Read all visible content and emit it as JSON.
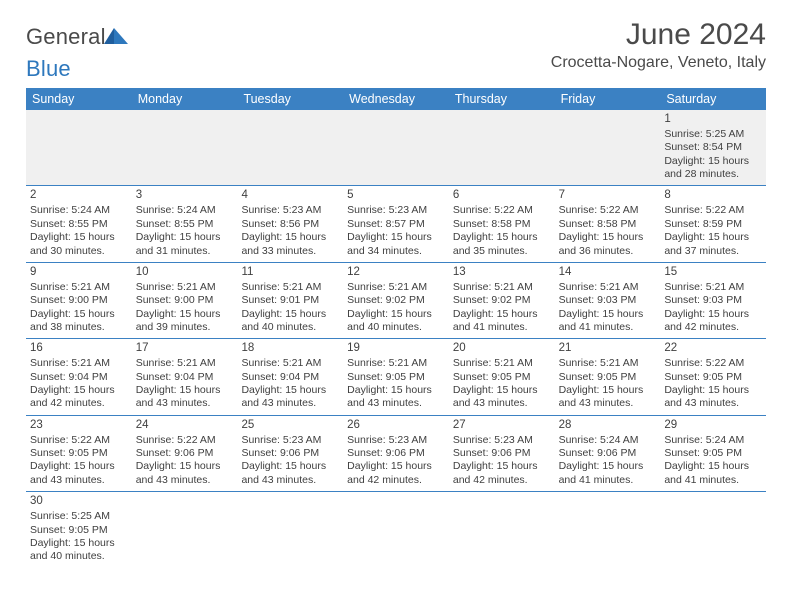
{
  "brand": {
    "name_a": "General",
    "name_b": "Blue"
  },
  "title": {
    "month": "June 2024",
    "location": "Crocetta-Nogare, Veneto, Italy"
  },
  "colors": {
    "header_bg": "#3b81c3",
    "divider": "#3b81c3",
    "text": "#3f3f3f",
    "brand_gray": "#4a4a4a",
    "brand_blue": "#2e78bd"
  },
  "weekdays": [
    "Sunday",
    "Monday",
    "Tuesday",
    "Wednesday",
    "Thursday",
    "Friday",
    "Saturday"
  ],
  "weeks": [
    [
      {
        "empty": true
      },
      {
        "empty": true
      },
      {
        "empty": true
      },
      {
        "empty": true
      },
      {
        "empty": true
      },
      {
        "empty": true
      },
      {
        "day": "1",
        "sunrise": "Sunrise: 5:25 AM",
        "sunset": "Sunset: 8:54 PM",
        "day_a": "Daylight: 15 hours",
        "day_b": "and 28 minutes.",
        "firstfill": true
      }
    ],
    [
      {
        "day": "2",
        "sunrise": "Sunrise: 5:24 AM",
        "sunset": "Sunset: 8:55 PM",
        "day_a": "Daylight: 15 hours",
        "day_b": "and 30 minutes."
      },
      {
        "day": "3",
        "sunrise": "Sunrise: 5:24 AM",
        "sunset": "Sunset: 8:55 PM",
        "day_a": "Daylight: 15 hours",
        "day_b": "and 31 minutes."
      },
      {
        "day": "4",
        "sunrise": "Sunrise: 5:23 AM",
        "sunset": "Sunset: 8:56 PM",
        "day_a": "Daylight: 15 hours",
        "day_b": "and 33 minutes."
      },
      {
        "day": "5",
        "sunrise": "Sunrise: 5:23 AM",
        "sunset": "Sunset: 8:57 PM",
        "day_a": "Daylight: 15 hours",
        "day_b": "and 34 minutes."
      },
      {
        "day": "6",
        "sunrise": "Sunrise: 5:22 AM",
        "sunset": "Sunset: 8:58 PM",
        "day_a": "Daylight: 15 hours",
        "day_b": "and 35 minutes."
      },
      {
        "day": "7",
        "sunrise": "Sunrise: 5:22 AM",
        "sunset": "Sunset: 8:58 PM",
        "day_a": "Daylight: 15 hours",
        "day_b": "and 36 minutes."
      },
      {
        "day": "8",
        "sunrise": "Sunrise: 5:22 AM",
        "sunset": "Sunset: 8:59 PM",
        "day_a": "Daylight: 15 hours",
        "day_b": "and 37 minutes."
      }
    ],
    [
      {
        "day": "9",
        "sunrise": "Sunrise: 5:21 AM",
        "sunset": "Sunset: 9:00 PM",
        "day_a": "Daylight: 15 hours",
        "day_b": "and 38 minutes."
      },
      {
        "day": "10",
        "sunrise": "Sunrise: 5:21 AM",
        "sunset": "Sunset: 9:00 PM",
        "day_a": "Daylight: 15 hours",
        "day_b": "and 39 minutes."
      },
      {
        "day": "11",
        "sunrise": "Sunrise: 5:21 AM",
        "sunset": "Sunset: 9:01 PM",
        "day_a": "Daylight: 15 hours",
        "day_b": "and 40 minutes."
      },
      {
        "day": "12",
        "sunrise": "Sunrise: 5:21 AM",
        "sunset": "Sunset: 9:02 PM",
        "day_a": "Daylight: 15 hours",
        "day_b": "and 40 minutes."
      },
      {
        "day": "13",
        "sunrise": "Sunrise: 5:21 AM",
        "sunset": "Sunset: 9:02 PM",
        "day_a": "Daylight: 15 hours",
        "day_b": "and 41 minutes."
      },
      {
        "day": "14",
        "sunrise": "Sunrise: 5:21 AM",
        "sunset": "Sunset: 9:03 PM",
        "day_a": "Daylight: 15 hours",
        "day_b": "and 41 minutes."
      },
      {
        "day": "15",
        "sunrise": "Sunrise: 5:21 AM",
        "sunset": "Sunset: 9:03 PM",
        "day_a": "Daylight: 15 hours",
        "day_b": "and 42 minutes."
      }
    ],
    [
      {
        "day": "16",
        "sunrise": "Sunrise: 5:21 AM",
        "sunset": "Sunset: 9:04 PM",
        "day_a": "Daylight: 15 hours",
        "day_b": "and 42 minutes."
      },
      {
        "day": "17",
        "sunrise": "Sunrise: 5:21 AM",
        "sunset": "Sunset: 9:04 PM",
        "day_a": "Daylight: 15 hours",
        "day_b": "and 43 minutes."
      },
      {
        "day": "18",
        "sunrise": "Sunrise: 5:21 AM",
        "sunset": "Sunset: 9:04 PM",
        "day_a": "Daylight: 15 hours",
        "day_b": "and 43 minutes."
      },
      {
        "day": "19",
        "sunrise": "Sunrise: 5:21 AM",
        "sunset": "Sunset: 9:05 PM",
        "day_a": "Daylight: 15 hours",
        "day_b": "and 43 minutes."
      },
      {
        "day": "20",
        "sunrise": "Sunrise: 5:21 AM",
        "sunset": "Sunset: 9:05 PM",
        "day_a": "Daylight: 15 hours",
        "day_b": "and 43 minutes."
      },
      {
        "day": "21",
        "sunrise": "Sunrise: 5:21 AM",
        "sunset": "Sunset: 9:05 PM",
        "day_a": "Daylight: 15 hours",
        "day_b": "and 43 minutes."
      },
      {
        "day": "22",
        "sunrise": "Sunrise: 5:22 AM",
        "sunset": "Sunset: 9:05 PM",
        "day_a": "Daylight: 15 hours",
        "day_b": "and 43 minutes."
      }
    ],
    [
      {
        "day": "23",
        "sunrise": "Sunrise: 5:22 AM",
        "sunset": "Sunset: 9:05 PM",
        "day_a": "Daylight: 15 hours",
        "day_b": "and 43 minutes."
      },
      {
        "day": "24",
        "sunrise": "Sunrise: 5:22 AM",
        "sunset": "Sunset: 9:06 PM",
        "day_a": "Daylight: 15 hours",
        "day_b": "and 43 minutes."
      },
      {
        "day": "25",
        "sunrise": "Sunrise: 5:23 AM",
        "sunset": "Sunset: 9:06 PM",
        "day_a": "Daylight: 15 hours",
        "day_b": "and 43 minutes."
      },
      {
        "day": "26",
        "sunrise": "Sunrise: 5:23 AM",
        "sunset": "Sunset: 9:06 PM",
        "day_a": "Daylight: 15 hours",
        "day_b": "and 42 minutes."
      },
      {
        "day": "27",
        "sunrise": "Sunrise: 5:23 AM",
        "sunset": "Sunset: 9:06 PM",
        "day_a": "Daylight: 15 hours",
        "day_b": "and 42 minutes."
      },
      {
        "day": "28",
        "sunrise": "Sunrise: 5:24 AM",
        "sunset": "Sunset: 9:06 PM",
        "day_a": "Daylight: 15 hours",
        "day_b": "and 41 minutes."
      },
      {
        "day": "29",
        "sunrise": "Sunrise: 5:24 AM",
        "sunset": "Sunset: 9:05 PM",
        "day_a": "Daylight: 15 hours",
        "day_b": "and 41 minutes."
      }
    ],
    [
      {
        "day": "30",
        "sunrise": "Sunrise: 5:25 AM",
        "sunset": "Sunset: 9:05 PM",
        "day_a": "Daylight: 15 hours",
        "day_b": "and 40 minutes."
      },
      {
        "empty": true,
        "blank": true
      },
      {
        "empty": true,
        "blank": true
      },
      {
        "empty": true,
        "blank": true
      },
      {
        "empty": true,
        "blank": true
      },
      {
        "empty": true,
        "blank": true
      },
      {
        "empty": true,
        "blank": true
      }
    ]
  ]
}
